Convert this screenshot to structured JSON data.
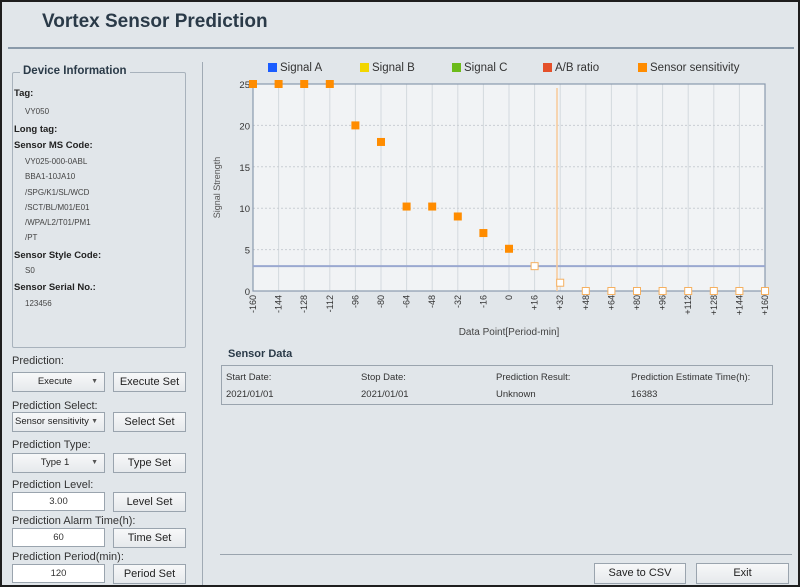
{
  "app": {
    "title": "Vortex Sensor Prediction"
  },
  "device": {
    "legend": "Device Information",
    "tag_label": "Tag:",
    "tag": "VY050",
    "long_tag_label": "Long tag:",
    "ms_code_label": "Sensor MS Code:",
    "ms_code": [
      "VY025-000-0ABL",
      "BBA1-10JA10",
      "/SPG/K1/SL/WCD",
      "/SCT/BL/M01/E01",
      "/WPA/L2/T01/PM1",
      "/PT"
    ],
    "style_label": "Sensor Style Code:",
    "style": "S0",
    "serial_label": "Sensor Serial No.:",
    "serial": "123456"
  },
  "controls": {
    "prediction": {
      "label": "Prediction:",
      "value": "Execute",
      "button": "Execute Set"
    },
    "select": {
      "label": "Prediction Select:",
      "value": "Sensor sensitivity",
      "button": "Select Set"
    },
    "type": {
      "label": "Prediction Type:",
      "value": "Type 1",
      "button": "Type Set"
    },
    "level": {
      "label": "Prediction Level:",
      "value": "3.00",
      "button": "Level Set"
    },
    "alarm": {
      "label": "Prediction Alarm Time(h):",
      "value": "60",
      "button": "Time Set"
    },
    "period": {
      "label": "Prediction Period(min):",
      "value": "120",
      "button": "Period Set"
    }
  },
  "chart_data": {
    "type": "scatter",
    "legend": [
      {
        "name": "Signal A",
        "color": "#1a5cff"
      },
      {
        "name": "Signal B",
        "color": "#f2d600"
      },
      {
        "name": "Signal C",
        "color": "#6cbb1a"
      },
      {
        "name": "A/B ratio",
        "color": "#e4502a"
      },
      {
        "name": "Sensor sensitivity",
        "color": "#ff8c00"
      }
    ],
    "xlabel": "Data Point[Period-min]",
    "ylabel": "Signal Strength",
    "xlim": [
      -160,
      160
    ],
    "ylim": [
      0,
      25
    ],
    "xticks": [
      "-160",
      "-144",
      "-128",
      "-112",
      "-96",
      "-80",
      "-64",
      "-48",
      "-32",
      "-16",
      "0",
      "+16",
      "+32",
      "+48",
      "+64",
      "+80",
      "+96",
      "+112",
      "+128",
      "+144",
      "+160"
    ],
    "yticks": [
      "0",
      "5",
      "10",
      "15",
      "20",
      "25"
    ],
    "grid": true,
    "legend_position": "top",
    "measured": {
      "name": "Sensor sensitivity",
      "x": [
        -160,
        -144,
        -128,
        -112,
        -96,
        -80,
        -64,
        -48,
        -32,
        -16,
        0
      ],
      "y": [
        25,
        25,
        25,
        25,
        20,
        18,
        10.2,
        10.2,
        9,
        7,
        5.1
      ]
    },
    "predicted": {
      "x": [
        16,
        32,
        48,
        64,
        80,
        96,
        112,
        128,
        144,
        160
      ],
      "y": [
        3,
        1,
        0,
        0,
        0,
        0,
        0,
        0,
        0,
        0
      ]
    },
    "threshold_level": 3,
    "alarm_marker_x": 30
  },
  "sensor_data": {
    "title": "Sensor Data",
    "headers": [
      "Start Date:",
      "Stop Date:",
      "Prediction Result:",
      "Prediction Estimate Time(h):"
    ],
    "values": [
      "2021/01/01",
      "2021/01/01",
      "Unknown",
      "16383"
    ]
  },
  "footer": {
    "save": "Save to CSV",
    "exit": "Exit"
  }
}
